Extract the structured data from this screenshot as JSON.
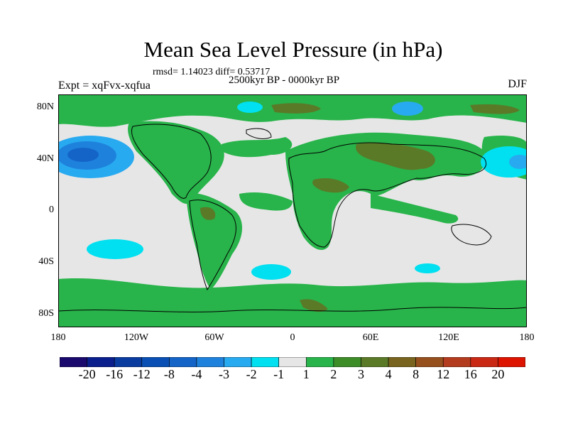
{
  "title": "Mean Sea Level Pressure (in hPa)",
  "stats": "rmsd= 1.14023 diff= 0.53717",
  "experiment": "Expt = xqFvx-xqfua",
  "period": "2500kyr BP - 0000kyr BP",
  "season": "DJF",
  "lat_ticks": [
    "80N",
    "40N",
    "0",
    "40S",
    "80S"
  ],
  "lon_ticks": [
    "180",
    "120W",
    "60W",
    "0",
    "60E",
    "120E",
    "180"
  ],
  "legend": {
    "labels": [
      "-20",
      "-16",
      "-12",
      "-8",
      "-4",
      "-3",
      "-2",
      "-1",
      "1",
      "2",
      "3",
      "4",
      "8",
      "12",
      "16",
      "20"
    ],
    "colors": [
      "#1a0a6e",
      "#0a1e8c",
      "#0a3ca0",
      "#0a50b4",
      "#1464c8",
      "#1e82dc",
      "#28aaf0",
      "#00e0f0",
      "#e6e6e6",
      "#28b44a",
      "#3c8c28",
      "#5a7a28",
      "#78641e",
      "#96501e",
      "#b43c1e",
      "#c82814",
      "#dc1400"
    ]
  },
  "colors": {
    "land_outline": "#000000",
    "neutral": "#e6e6e6",
    "positive_light": "#28b44a",
    "positive_mid": "#5a7a28",
    "negative_light": "#00e0f0",
    "negative_mid": "#28aaf0",
    "negative_deep": "#1e82dc"
  }
}
